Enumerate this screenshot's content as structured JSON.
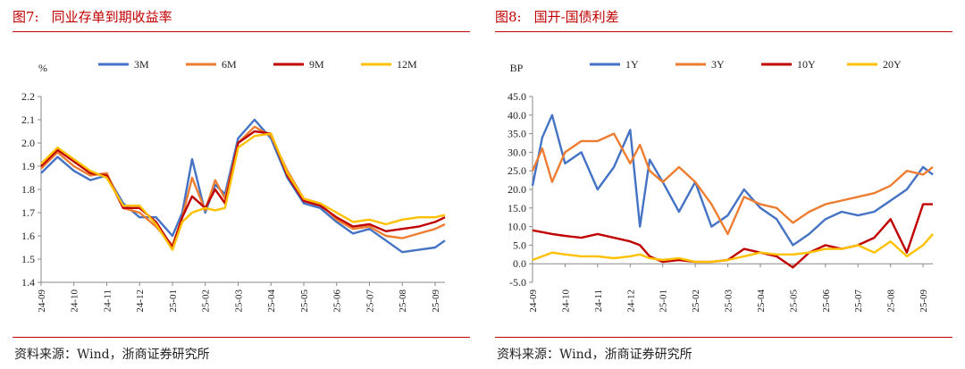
{
  "charts": [
    {
      "fig_label": "图7:",
      "title": "同业存单到期收益率",
      "source": "资料来源：Wind，浙商证券研究所"
    },
    {
      "fig_label": "图8:",
      "title": "国开-国债利差",
      "source": "资料来源：Wind，浙商证券研究所"
    }
  ],
  "chart_data": [
    {
      "type": "line",
      "title": "同业存单到期收益率",
      "ylabel": "%",
      "xlabel": "",
      "ylim": [
        1.4,
        2.2
      ],
      "yticks": [
        1.4,
        1.5,
        1.6,
        1.7,
        1.8,
        1.9,
        2.0,
        2.1,
        2.2
      ],
      "ytick_labels": [
        "1.4",
        "1.5",
        "1.6",
        "1.7",
        "1.8",
        "1.9",
        "2.0",
        "2.1",
        "2.2"
      ],
      "categories": [
        "24-09",
        "24-10",
        "24-11",
        "24-12",
        "25-01",
        "25-02",
        "25-03",
        "25-04",
        "25-05",
        "25-06",
        "25-07",
        "25-08",
        "25-09"
      ],
      "x": [
        0,
        0.5,
        1,
        1.5,
        2,
        2.5,
        3,
        3.5,
        4,
        4.3,
        4.6,
        5,
        5.3,
        5.6,
        6,
        6.5,
        7,
        7.5,
        8,
        8.5,
        9,
        9.5,
        10,
        10.5,
        11,
        11.5,
        12,
        12.3
      ],
      "legend": "top",
      "series": [
        {
          "name": "3M",
          "color": "#4472C4",
          "values": [
            1.87,
            1.94,
            1.88,
            1.84,
            1.86,
            1.74,
            1.68,
            1.68,
            1.6,
            1.7,
            1.93,
            1.7,
            1.82,
            1.78,
            2.02,
            2.1,
            2.02,
            1.85,
            1.74,
            1.72,
            1.66,
            1.61,
            1.63,
            1.58,
            1.53,
            1.54,
            1.55,
            1.58
          ]
        },
        {
          "name": "6M",
          "color": "#ED7D31",
          "values": [
            1.89,
            1.96,
            1.9,
            1.86,
            1.87,
            1.72,
            1.7,
            1.64,
            1.56,
            1.68,
            1.85,
            1.71,
            1.84,
            1.76,
            2.0,
            2.07,
            2.03,
            1.88,
            1.76,
            1.74,
            1.67,
            1.63,
            1.64,
            1.6,
            1.59,
            1.61,
            1.63,
            1.65
          ]
        },
        {
          "name": "9M",
          "color": "#C00000",
          "values": [
            1.9,
            1.97,
            1.92,
            1.87,
            1.86,
            1.72,
            1.72,
            1.66,
            1.55,
            1.68,
            1.77,
            1.72,
            1.8,
            1.74,
            2.0,
            2.05,
            2.04,
            1.86,
            1.75,
            1.73,
            1.68,
            1.64,
            1.65,
            1.62,
            1.63,
            1.64,
            1.66,
            1.68
          ]
        },
        {
          "name": "12M",
          "color": "#FFC000",
          "values": [
            1.91,
            1.98,
            1.93,
            1.88,
            1.85,
            1.73,
            1.73,
            1.65,
            1.54,
            1.66,
            1.7,
            1.72,
            1.71,
            1.72,
            1.98,
            2.03,
            2.04,
            1.87,
            1.76,
            1.74,
            1.7,
            1.66,
            1.67,
            1.65,
            1.67,
            1.68,
            1.68,
            1.69
          ]
        }
      ]
    },
    {
      "type": "line",
      "title": "国开-国债利差",
      "ylabel": "BP",
      "xlabel": "",
      "ylim": [
        -5.0,
        45.0
      ],
      "yticks": [
        -5,
        0,
        5,
        10,
        15,
        20,
        25,
        30,
        35,
        40,
        45
      ],
      "ytick_labels": [
        "-5.0",
        "0.0",
        "5.0",
        "10.0",
        "15.0",
        "20.0",
        "25.0",
        "30.0",
        "35.0",
        "40.0",
        "45.0"
      ],
      "categories": [
        "24-09",
        "24-10",
        "24-11",
        "24-12",
        "25-01",
        "25-02",
        "25-03",
        "25-04",
        "25-05",
        "25-06",
        "25-07",
        "25-08",
        "25-09"
      ],
      "x": [
        0,
        0.3,
        0.6,
        1,
        1.5,
        2,
        2.5,
        3,
        3.3,
        3.6,
        4,
        4.5,
        5,
        5.5,
        6,
        6.5,
        7,
        7.5,
        8,
        8.5,
        9,
        9.5,
        10,
        10.5,
        11,
        11.5,
        12,
        12.3
      ],
      "legend": "top",
      "series": [
        {
          "name": "1Y",
          "color": "#4472C4",
          "values": [
            21,
            34,
            40,
            27,
            30,
            20,
            26,
            36,
            10,
            28,
            22,
            14,
            22,
            10,
            13,
            20,
            15,
            12,
            5,
            8,
            12,
            14,
            13,
            14,
            17,
            20,
            26,
            24
          ]
        },
        {
          "name": "3Y",
          "color": "#ED7D31",
          "values": [
            25,
            31,
            22,
            30,
            33,
            33,
            35,
            27,
            32,
            25,
            22,
            26,
            22,
            16,
            8,
            18,
            16,
            15,
            11,
            14,
            16,
            17,
            18,
            19,
            21,
            25,
            24,
            26
          ]
        },
        {
          "name": "10Y",
          "color": "#C00000",
          "values": [
            9,
            8.5,
            8,
            7.5,
            7,
            8,
            7,
            6,
            5,
            2,
            0.5,
            1,
            0.5,
            0.5,
            1,
            4,
            3,
            2,
            -1,
            3,
            5,
            4,
            5,
            7,
            12,
            3,
            16,
            16
          ]
        },
        {
          "name": "20Y",
          "color": "#FFC000",
          "values": [
            1,
            2,
            3,
            2.5,
            2,
            2,
            1.5,
            2,
            2.5,
            1.5,
            1,
            1.5,
            0.5,
            0.5,
            1,
            2,
            3,
            2.5,
            2.5,
            3,
            4,
            4,
            5,
            3,
            6,
            2,
            5,
            8
          ]
        }
      ]
    }
  ]
}
